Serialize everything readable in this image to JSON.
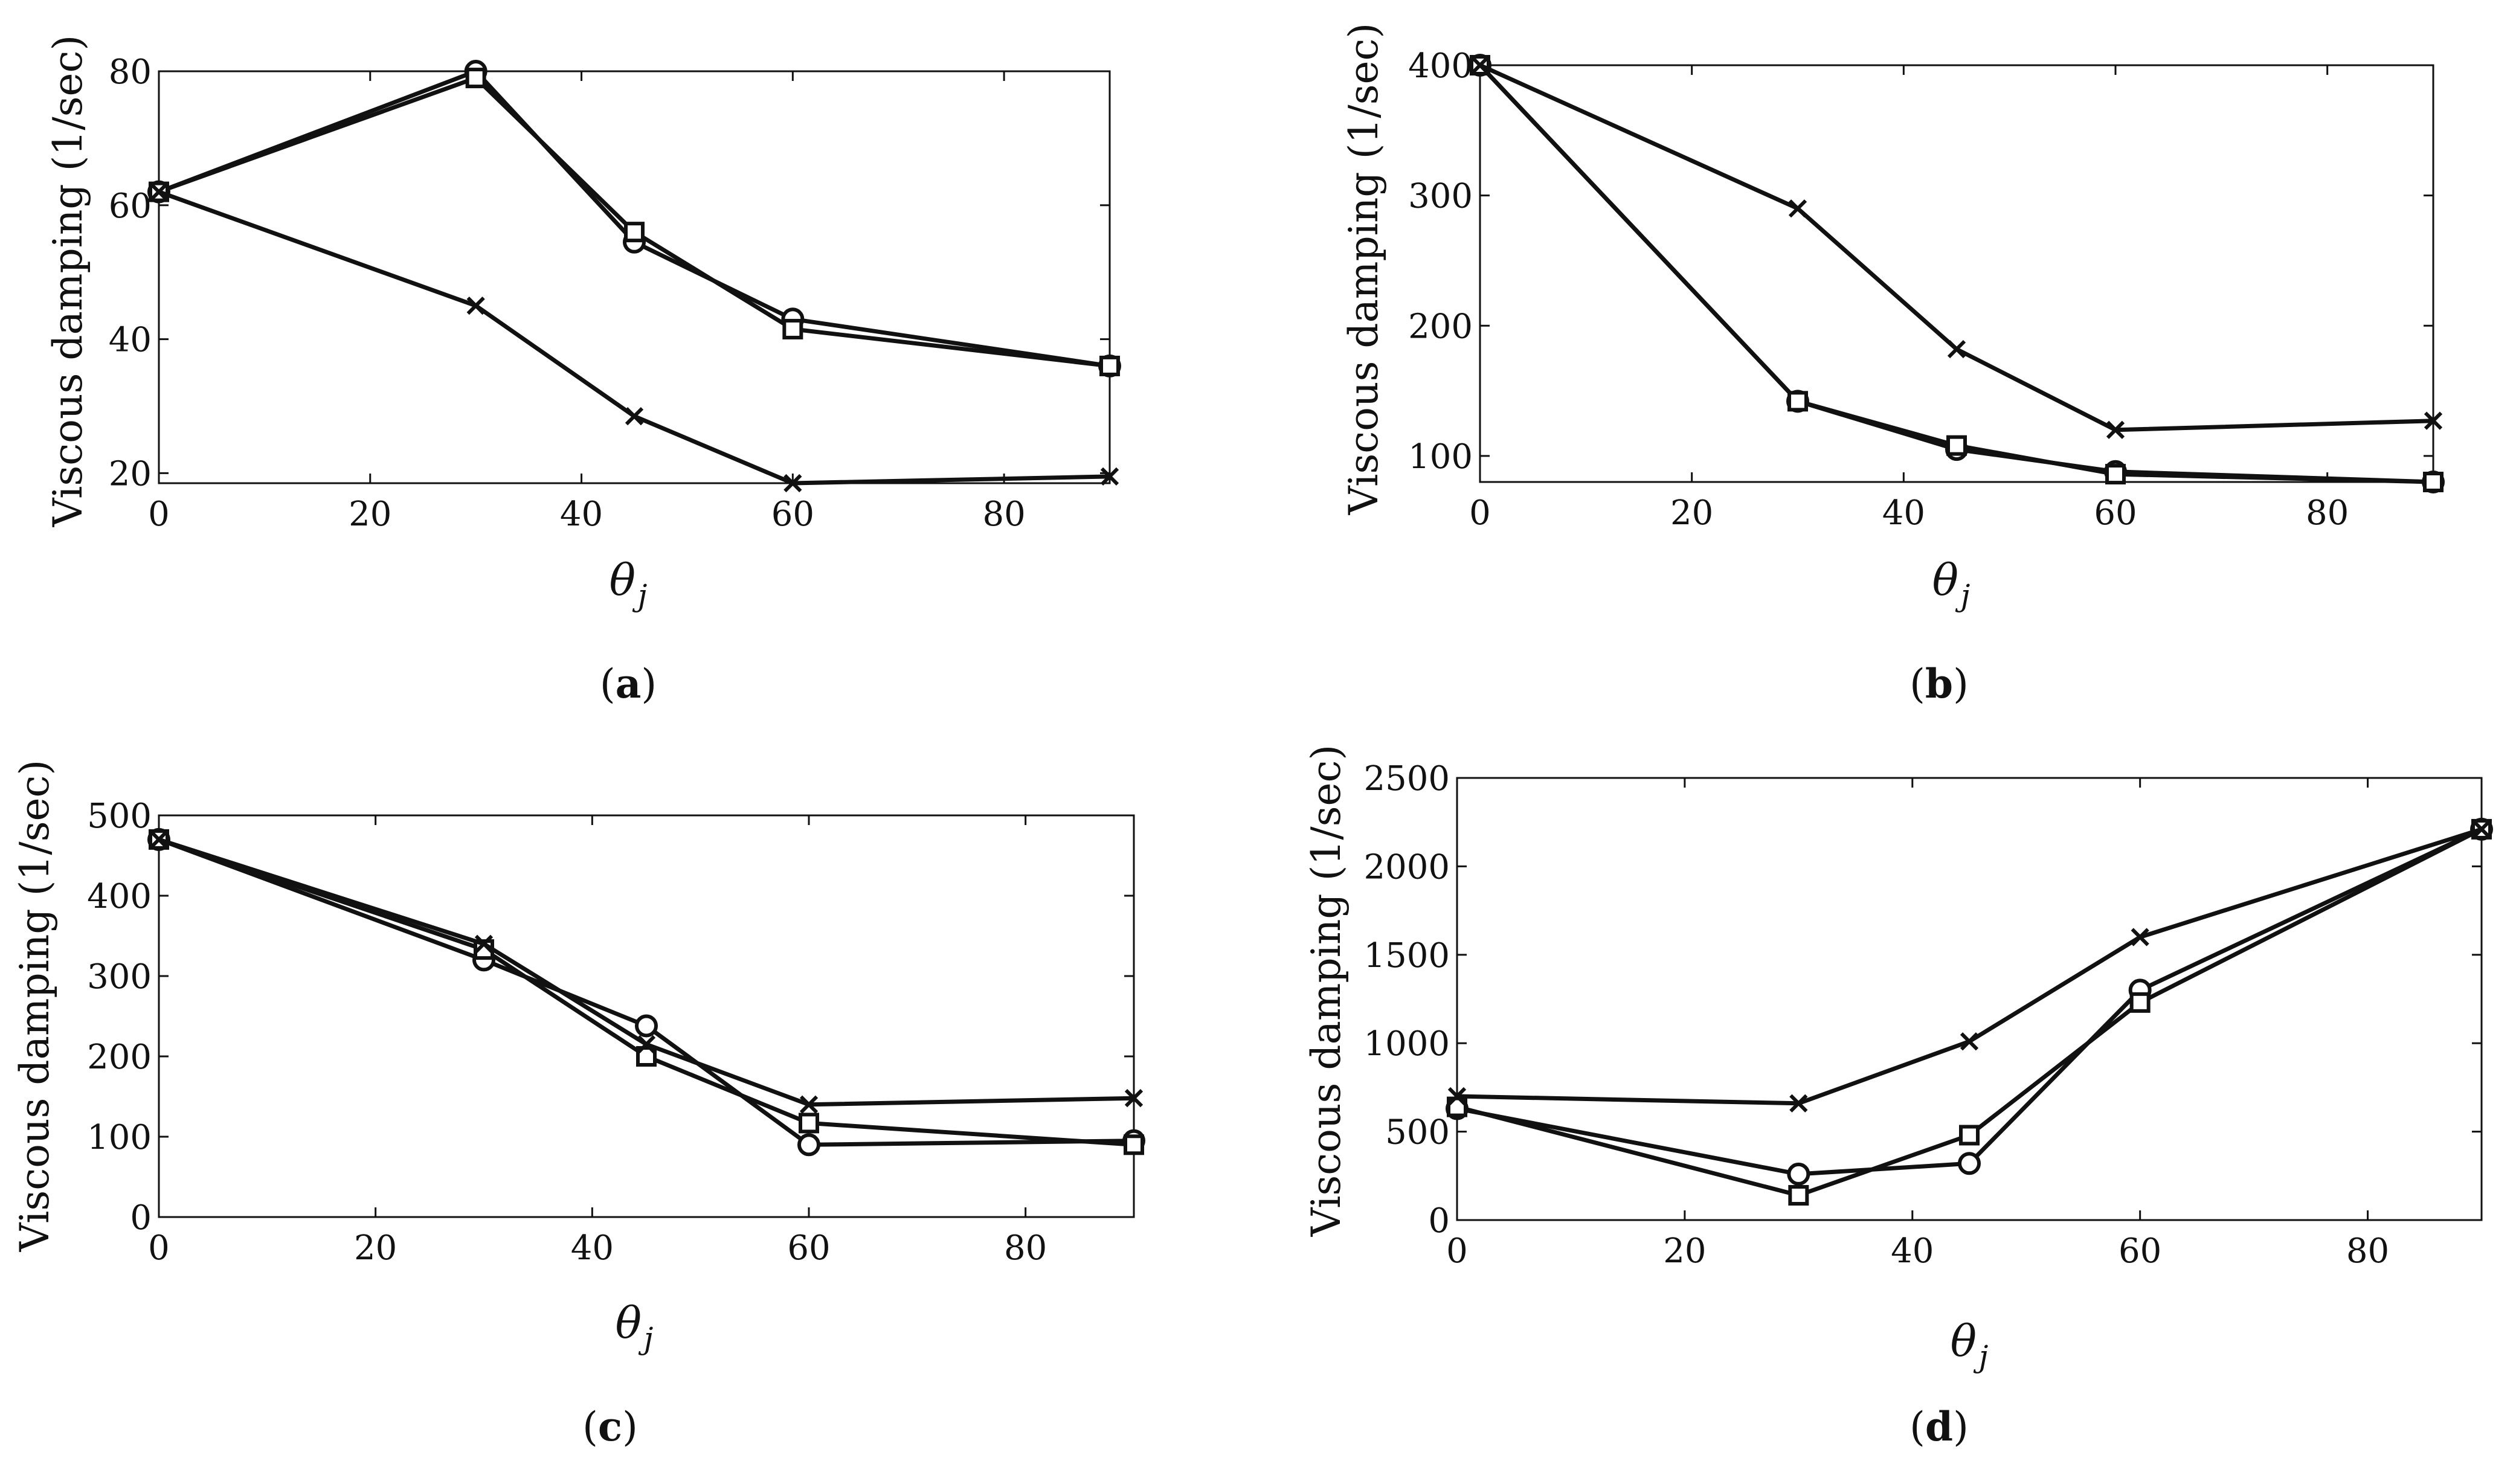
{
  "chart_data": [
    {
      "type": "line",
      "panel": "a",
      "xlabel": "θ",
      "xlabel_sub": "j",
      "ylabel": "Viscous damping (1/sec)",
      "xlim": [
        0,
        90
      ],
      "ylim": [
        18.5,
        80
      ],
      "xticks": [
        0,
        20,
        40,
        60,
        80
      ],
      "yticks": [
        20,
        40,
        60,
        80
      ],
      "x": [
        0,
        30,
        45,
        60,
        90
      ],
      "series": [
        {
          "name": "circle",
          "marker": "circle",
          "values": [
            62,
            80,
            54.5,
            43,
            36
          ]
        },
        {
          "name": "square",
          "marker": "square",
          "values": [
            62,
            79,
            56,
            41.5,
            36
          ]
        },
        {
          "name": "cross",
          "marker": "x",
          "values": [
            62,
            45,
            28.5,
            18.5,
            19.5
          ]
        }
      ],
      "caption_open": "(",
      "caption_letter": "a",
      "caption_close": ")"
    },
    {
      "type": "line",
      "panel": "b",
      "xlabel": "θ",
      "xlabel_sub": "j",
      "ylabel": "Viscous damping (1/sec)",
      "xlim": [
        0,
        90
      ],
      "ylim": [
        80,
        400
      ],
      "xticks": [
        0,
        20,
        40,
        60,
        80
      ],
      "yticks": [
        100,
        200,
        300,
        400
      ],
      "x": [
        0,
        30,
        45,
        60,
        90
      ],
      "series": [
        {
          "name": "circle",
          "marker": "circle",
          "values": [
            400,
            142,
            105,
            88,
            80
          ]
        },
        {
          "name": "square",
          "marker": "square",
          "values": [
            400,
            142,
            108,
            86,
            80
          ]
        },
        {
          "name": "cross",
          "marker": "x",
          "values": [
            400,
            290,
            182,
            120,
            127
          ]
        }
      ],
      "caption_open": "(",
      "caption_letter": "b",
      "caption_close": ")"
    },
    {
      "type": "line",
      "panel": "c",
      "xlabel": "θ",
      "xlabel_sub": "j",
      "ylabel": "Viscous damping (1/sec)",
      "xlim": [
        0,
        90
      ],
      "ylim": [
        0,
        500
      ],
      "xticks": [
        0,
        20,
        40,
        60,
        80
      ],
      "yticks": [
        0,
        100,
        200,
        300,
        400,
        500
      ],
      "x": [
        0,
        30,
        45,
        60,
        90
      ],
      "series": [
        {
          "name": "circle",
          "marker": "circle",
          "values": [
            470,
            320,
            238,
            90,
            95
          ]
        },
        {
          "name": "square",
          "marker": "square",
          "values": [
            470,
            333,
            200,
            117,
            90
          ]
        },
        {
          "name": "cross",
          "marker": "x",
          "values": [
            470,
            340,
            215,
            140,
            148
          ]
        }
      ],
      "caption_open": "(",
      "caption_letter": "c",
      "caption_close": ")"
    },
    {
      "type": "line",
      "panel": "d",
      "xlabel": "θ",
      "xlabel_sub": "j",
      "ylabel": "Viscous damping (1/sec)",
      "xlim": [
        0,
        90
      ],
      "ylim": [
        0,
        2500
      ],
      "xticks": [
        0,
        20,
        40,
        60,
        80
      ],
      "yticks": [
        0,
        500,
        1000,
        1500,
        2000,
        2500
      ],
      "x": [
        0,
        30,
        45,
        60,
        90
      ],
      "series": [
        {
          "name": "circle",
          "marker": "circle",
          "values": [
            630,
            260,
            320,
            1300,
            2210
          ]
        },
        {
          "name": "square",
          "marker": "square",
          "values": [
            640,
            140,
            480,
            1230,
            2210
          ]
        },
        {
          "name": "cross",
          "marker": "x",
          "values": [
            700,
            660,
            1010,
            1600,
            2210
          ]
        }
      ],
      "caption_open": "(",
      "caption_letter": "d",
      "caption_close": ")"
    }
  ],
  "colors": {
    "line": "#111111",
    "axis": "#111111",
    "marker_fill": "#ffffff",
    "background": "#ffffff"
  }
}
